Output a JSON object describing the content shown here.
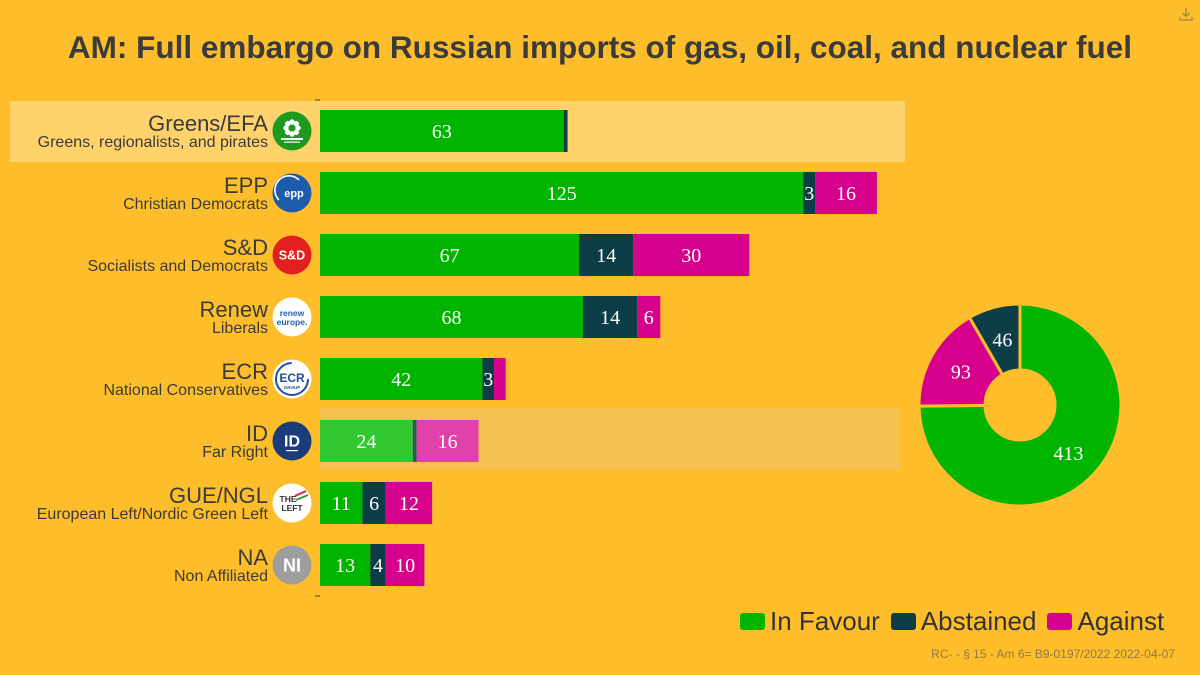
{
  "header": {
    "download_icon": "download-icon"
  },
  "footer": {
    "source": "RC- - § 15 - Am 6= B9-0197/2022 2022-04-07"
  },
  "colors": {
    "background": "#FEBE2B",
    "selected_row": "#FFD26B",
    "hovered_row": "#F4C250",
    "text": "#3B3B3B"
  },
  "chart_data": [
    {
      "type": "bar",
      "orientation": "horizontal",
      "stacked": true,
      "title": "AM: Full embargo on Russian imports of gas, oil, coal, and nuclear fuel",
      "categories": [
        "Greens/EFA",
        "EPP",
        "S&D",
        "Renew",
        "ECR",
        "ID",
        "GUE/NGL",
        "NA"
      ],
      "category_subtitles": [
        "Greens, regionalists, and pirates",
        "Christian Democrats",
        "Socialists and Democrats",
        "Liberals",
        "National Conservatives",
        "Far Right",
        "European Left/Nordic Green Left",
        "Non Affiliated"
      ],
      "series": [
        {
          "name": "In Favour",
          "color": "#00B400",
          "hover_color": "#32C832",
          "values": [
            63,
            125,
            67,
            68,
            42,
            24,
            11,
            13
          ]
        },
        {
          "name": "Abstained",
          "color": "#0D3D46",
          "hover_color": "#2A5A60",
          "values": [
            1,
            3,
            14,
            14,
            3,
            1,
            6,
            4
          ]
        },
        {
          "name": "Against",
          "color": "#D7008C",
          "hover_color": "#E141AA",
          "values": [
            0,
            16,
            30,
            6,
            3,
            16,
            12,
            10
          ]
        }
      ],
      "xlim": [
        0,
        151
      ],
      "grid": false,
      "legend_position": "bottom-right",
      "highlighted_rows": {
        "selected": 0,
        "hovered": 5
      },
      "logos": [
        {
          "icon": "greens-efa-logo",
          "fill": "#1E9A1E",
          "text_color": "#FFFFFF",
          "lines": []
        },
        {
          "icon": "epp-logo",
          "fill": "#1C5CAB",
          "text_color": "#FFFFFF",
          "lines": [
            "epp"
          ]
        },
        {
          "icon": "s-and-d-logo",
          "fill": "#E3201F",
          "text_color": "#FFFFFF",
          "lines": [
            "S&D"
          ]
        },
        {
          "icon": "renew-europe-logo",
          "fill": "#FFFFFF",
          "text_color": "#1F5FAE",
          "lines": [
            "renew",
            "europe."
          ]
        },
        {
          "icon": "ecr-logo",
          "fill": "#FFFFFF",
          "text_color": "#1F4F9E",
          "lines": [
            "ECR",
            "GROUP"
          ]
        },
        {
          "icon": "id-logo",
          "fill": "#1B3C7A",
          "text_color": "#FFFFFF",
          "lines": [
            "ID"
          ]
        },
        {
          "icon": "the-left-logo",
          "fill": "#FFFFFF",
          "text_color": "#333333",
          "lines": [
            "THE",
            "LEFT"
          ]
        },
        {
          "icon": "non-inscrits-logo",
          "fill": "#9E9E9E",
          "text_color": "#FFFFFF",
          "lines": [
            "NI"
          ]
        }
      ]
    },
    {
      "type": "pie",
      "donut": true,
      "categories": [
        "In Favour",
        "Against",
        "Abstained"
      ],
      "values": [
        413,
        93,
        46
      ],
      "colors": [
        "#00B400",
        "#D7008C",
        "#0D3D46"
      ]
    }
  ]
}
